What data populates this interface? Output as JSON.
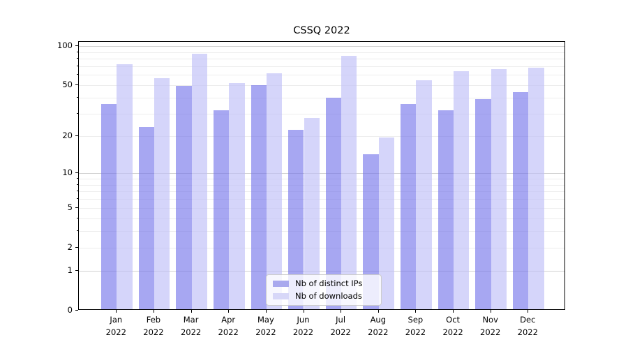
{
  "figure": {
    "title": "CSSQ 2022"
  },
  "legend": {
    "items": [
      {
        "label": "Nb of distinct IPs",
        "color": "#a9a9ee"
      },
      {
        "label": "Nb of downloads",
        "color": "#d7d7f8"
      }
    ]
  },
  "chart_data": {
    "type": "bar",
    "title": "CSSQ 2022",
    "categories": [
      "Jan 2022",
      "Feb 2022",
      "Mar 2022",
      "Apr 2022",
      "May 2022",
      "Jun 2022",
      "Jul 2022",
      "Aug 2022",
      "Sep 2022",
      "Oct 2022",
      "Nov 2022",
      "Dec 2022"
    ],
    "series": [
      {
        "name": "Nb of distinct IPs",
        "color": "rgba(113,113,234,0.62)",
        "values": [
          35,
          23,
          48,
          31,
          49,
          22,
          39,
          14,
          35,
          31,
          38,
          43
        ]
      },
      {
        "name": "Nb of downloads",
        "color": "rgba(190,190,247,0.65)",
        "values": [
          71,
          55,
          85,
          51,
          60,
          27,
          82,
          19,
          53,
          63,
          65,
          67
        ]
      }
    ],
    "yscale": "log1p",
    "yticks": [
      0,
      1,
      2,
      5,
      10,
      20,
      50,
      100
    ],
    "ylim": [
      0,
      108
    ],
    "grid": "both",
    "grid_minor_values": [
      2,
      3,
      4,
      5,
      6,
      7,
      8,
      9,
      20,
      30,
      40,
      50,
      60,
      70,
      80,
      90
    ],
    "grid_major_values": [
      1,
      10,
      100
    ],
    "legend_position": "lower center"
  }
}
